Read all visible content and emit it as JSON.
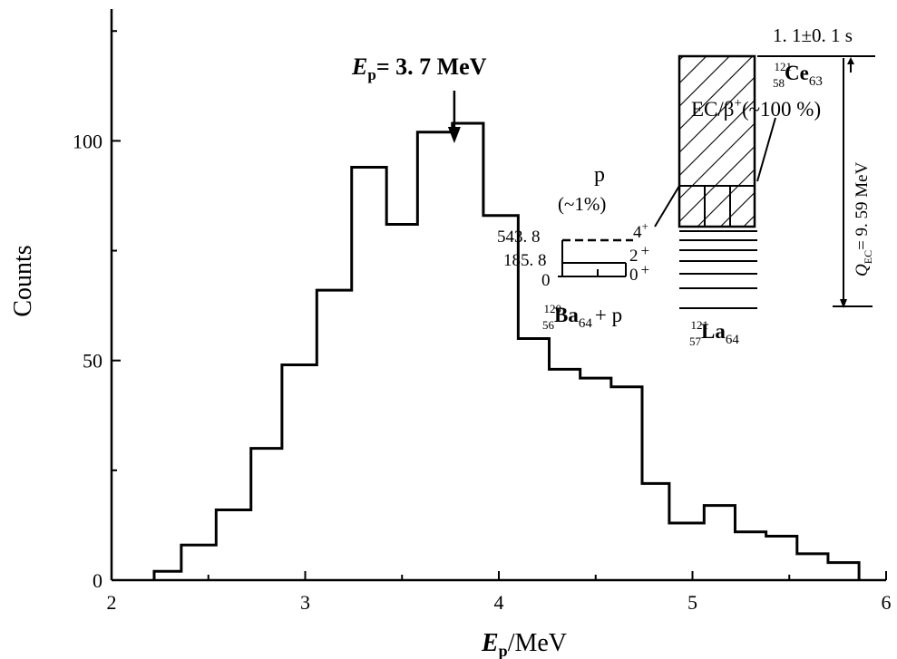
{
  "chart_data": {
    "type": "bar",
    "subtype": "step-histogram",
    "title": "",
    "xlabel_main": "E",
    "xlabel_sub": "p",
    "xlabel_unit": "/MeV",
    "ylabel": "Counts",
    "xlim": [
      2,
      6
    ],
    "ylim": [
      0,
      130
    ],
    "xticks": [
      2,
      3,
      4,
      5,
      6
    ],
    "yticks": [
      0,
      50,
      100
    ],
    "grid": false,
    "legend": "none",
    "bin_edges": [
      2.22,
      2.36,
      2.54,
      2.72,
      2.88,
      3.06,
      3.24,
      3.42,
      3.58,
      3.76,
      3.92,
      4.1,
      4.26,
      4.42,
      4.58,
      4.74,
      4.88,
      5.06,
      5.22,
      5.38,
      5.54,
      5.7,
      5.86
    ],
    "values": [
      2,
      8,
      16,
      30,
      49,
      66,
      94,
      81,
      102,
      104,
      83,
      55,
      48,
      46,
      44,
      22,
      13,
      17,
      11,
      10,
      6,
      4
    ],
    "annotations": {
      "peak_label_main": "E",
      "peak_label_sub": "p",
      "peak_label_value": "= 3. 7 MeV",
      "peak_x": 3.77,
      "halflife": "1. 1±0. 1 s",
      "parent_mass": "121",
      "parent_z": "58",
      "parent_symbol": "Ce",
      "parent_n": "63",
      "decay_mode": "EC/β",
      "decay_mode_sup": "+",
      "decay_branch": "(~100 %)",
      "proton_label": "p",
      "proton_branch": "(~1%)",
      "level_energies": [
        "543. 8",
        "185. 8",
        "0"
      ],
      "level_spins": [
        "4",
        "2",
        "0"
      ],
      "level_parity": [
        "+",
        "+",
        "+"
      ],
      "daughter_mass": "120",
      "daughter_z": "56",
      "daughter_symbol": "Ba",
      "daughter_n": "64",
      "plus_p": "+ p",
      "emitter_mass": "121",
      "emitter_z": "57",
      "emitter_symbol": "La",
      "emitter_n": "64",
      "qec_main": "Q",
      "qec_sub": "EC",
      "qec_value": "= 9. 59 MeV"
    }
  }
}
